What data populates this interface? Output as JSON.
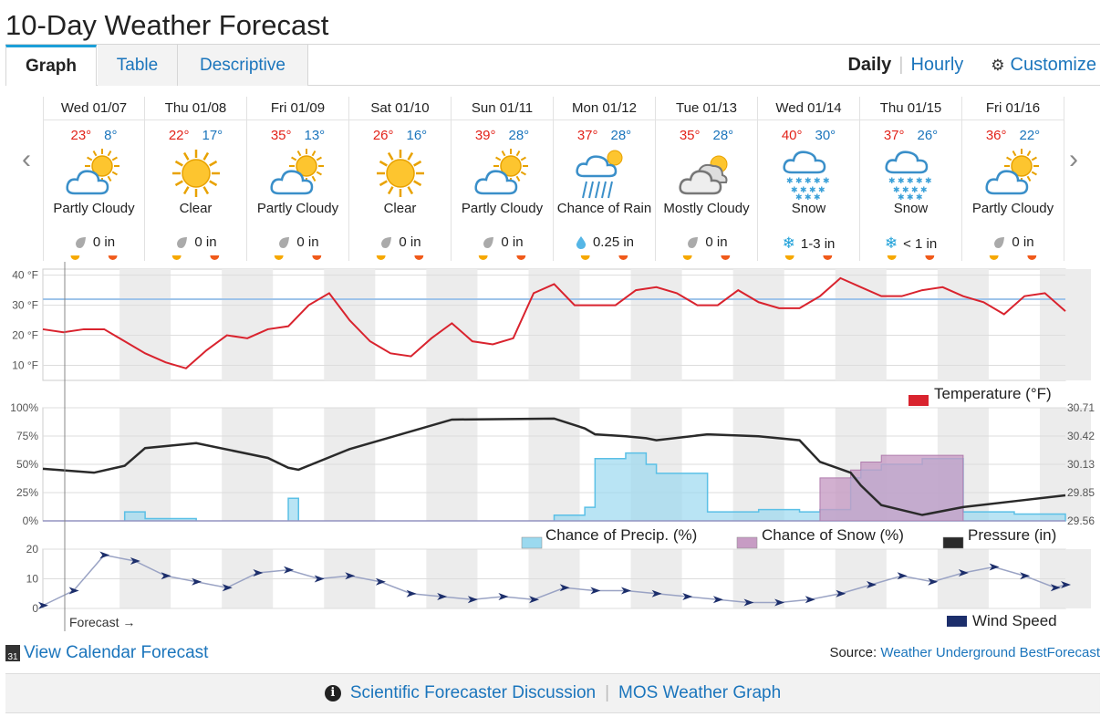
{
  "title": "10-Day Weather Forecast",
  "tabs": [
    {
      "label": "Graph"
    },
    {
      "label": "Table"
    },
    {
      "label": "Descriptive"
    }
  ],
  "nav": {
    "daily": "Daily",
    "hourly": "Hourly",
    "customize": "Customize"
  },
  "days": [
    {
      "date": "Wed 01/07",
      "high": "23°",
      "low": "8°",
      "icon": "partly-cloudy-icon",
      "condition": "Partly Cloudy",
      "precip": "0 in",
      "precip_type": "none"
    },
    {
      "date": "Thu 01/08",
      "high": "22°",
      "low": "17°",
      "icon": "clear-icon",
      "condition": "Clear",
      "precip": "0 in",
      "precip_type": "none"
    },
    {
      "date": "Fri 01/09",
      "high": "35°",
      "low": "13°",
      "icon": "partly-cloudy-icon",
      "condition": "Partly Cloudy",
      "precip": "0 in",
      "precip_type": "none"
    },
    {
      "date": "Sat 01/10",
      "high": "26°",
      "low": "16°",
      "icon": "clear-icon",
      "condition": "Clear",
      "precip": "0 in",
      "precip_type": "none"
    },
    {
      "date": "Sun 01/11",
      "high": "39°",
      "low": "28°",
      "icon": "partly-cloudy-icon",
      "condition": "Partly Cloudy",
      "precip": "0 in",
      "precip_type": "none"
    },
    {
      "date": "Mon 01/12",
      "high": "37°",
      "low": "28°",
      "icon": "chance-rain-icon",
      "condition": "Chance of Rain",
      "precip": "0.25 in",
      "precip_type": "rain"
    },
    {
      "date": "Tue 01/13",
      "high": "35°",
      "low": "28°",
      "icon": "mostly-cloudy-icon",
      "condition": "Mostly Cloudy",
      "precip": "0 in",
      "precip_type": "none"
    },
    {
      "date": "Wed 01/14",
      "high": "40°",
      "low": "30°",
      "icon": "snow-icon",
      "condition": "Snow",
      "precip": "1-3 in",
      "precip_type": "snow"
    },
    {
      "date": "Thu 01/15",
      "high": "37°",
      "low": "26°",
      "icon": "snow-icon",
      "condition": "Snow",
      "precip": "< 1 in",
      "precip_type": "snow"
    },
    {
      "date": "Fri 01/16",
      "high": "36°",
      "low": "22°",
      "icon": "partly-cloudy-icon",
      "condition": "Partly Cloudy",
      "precip": "0 in",
      "precip_type": "none"
    }
  ],
  "chart_data": [
    {
      "type": "line",
      "y_ticks": [
        "40 °F",
        "30 °F",
        "20 °F",
        "10 °F"
      ],
      "ylim": [
        5,
        42
      ],
      "legend": "Temperature (°F)",
      "color": "#d9232e",
      "freezing_line": 32,
      "x_days": [
        0,
        0.2,
        0.4,
        0.6,
        0.8,
        1.0,
        1.2,
        1.4,
        1.6,
        1.8,
        2.0,
        2.2,
        2.4,
        2.6,
        2.8,
        3.0,
        3.2,
        3.4,
        3.6,
        3.8,
        4.0,
        4.2,
        4.4,
        4.6,
        4.8,
        5.0,
        5.2,
        5.4,
        5.6,
        5.8,
        6.0,
        6.2,
        6.4,
        6.6,
        6.8,
        7.0,
        7.2,
        7.4,
        7.6,
        7.8,
        8.0,
        8.2,
        8.4,
        8.6,
        8.8,
        9.0,
        9.2,
        9.4,
        9.6,
        9.8,
        10.0
      ],
      "values": [
        22,
        21,
        22,
        22,
        18,
        14,
        11,
        9,
        15,
        20,
        19,
        22,
        23,
        30,
        34,
        25,
        18,
        14,
        13,
        19,
        24,
        18,
        17,
        19,
        34,
        37,
        30,
        30,
        30,
        35,
        36,
        34,
        30,
        30,
        35,
        31,
        29,
        29,
        33,
        39,
        36,
        33,
        33,
        35,
        36,
        33,
        31,
        27,
        33,
        34,
        28
      ]
    },
    {
      "type": "area",
      "y_ticks_left": [
        "100%",
        "75%",
        "50%",
        "25%",
        "0%"
      ],
      "y_ticks_right": [
        "30.71",
        "30.42",
        "30.13",
        "29.85",
        "29.56"
      ],
      "legend": [
        "Chance of Precip. (%)",
        "Chance of Snow (%)",
        "Pressure (in)"
      ],
      "colors": [
        "#9bd9ef",
        "#c79cc4",
        "#2a2a2a"
      ],
      "x_days": [
        0,
        0.5,
        0.8,
        1.0,
        1.5,
        2.2,
        2.4,
        2.5,
        3.0,
        4.0,
        5.0,
        5.3,
        5.4,
        5.7,
        5.9,
        6.0,
        6.5,
        7.0,
        7.4,
        7.6,
        7.9,
        8.0,
        8.2,
        8.6,
        9.0,
        9.5,
        10.0
      ],
      "precip": [
        0,
        0,
        8,
        2,
        0,
        0,
        20,
        0,
        0,
        0,
        5,
        12,
        55,
        60,
        50,
        42,
        8,
        10,
        8,
        10,
        38,
        45,
        50,
        55,
        8,
        6,
        0
      ],
      "snow": [
        0,
        0,
        0,
        0,
        0,
        0,
        0,
        0,
        0,
        0,
        0,
        0,
        0,
        0,
        0,
        0,
        0,
        0,
        0,
        38,
        45,
        52,
        58,
        58,
        0,
        0,
        0
      ],
      "pressure": [
        30.09,
        30.05,
        30.12,
        30.3,
        30.35,
        30.2,
        30.1,
        30.08,
        30.29,
        30.59,
        30.6,
        30.5,
        30.44,
        30.42,
        30.4,
        30.38,
        30.44,
        30.42,
        30.38,
        30.16,
        30.05,
        29.92,
        29.72,
        29.62,
        29.7,
        29.76,
        29.82
      ]
    },
    {
      "type": "line",
      "y_ticks": [
        "20",
        "10",
        "0"
      ],
      "ylim": [
        0,
        20
      ],
      "legend": "Wind Speed",
      "color": "#1c2e6b",
      "x_days": [
        0,
        0.3,
        0.6,
        0.9,
        1.2,
        1.5,
        1.8,
        2.1,
        2.4,
        2.7,
        3.0,
        3.3,
        3.6,
        3.9,
        4.2,
        4.5,
        4.8,
        5.1,
        5.4,
        5.7,
        6.0,
        6.3,
        6.6,
        6.9,
        7.2,
        7.5,
        7.8,
        8.1,
        8.4,
        8.7,
        9.0,
        9.3,
        9.6,
        9.9,
        10.0
      ],
      "values": [
        1,
        6,
        18,
        16,
        11,
        9,
        7,
        12,
        13,
        10,
        11,
        9,
        5,
        4,
        3,
        4,
        3,
        7,
        6,
        6,
        5,
        4,
        3,
        2,
        2,
        3,
        5,
        8,
        11,
        9,
        12,
        14,
        11,
        7,
        8
      ]
    }
  ],
  "forecast_label": "Forecast →",
  "footer": {
    "calendar": "View Calendar Forecast",
    "calendar_icon_num": "31",
    "source_prefix": "Source:",
    "source_link": "Weather Underground BestForecast",
    "discussion": "Scientific Forecaster Discussion",
    "mos": "MOS Weather Graph",
    "info_glyph": "i"
  }
}
